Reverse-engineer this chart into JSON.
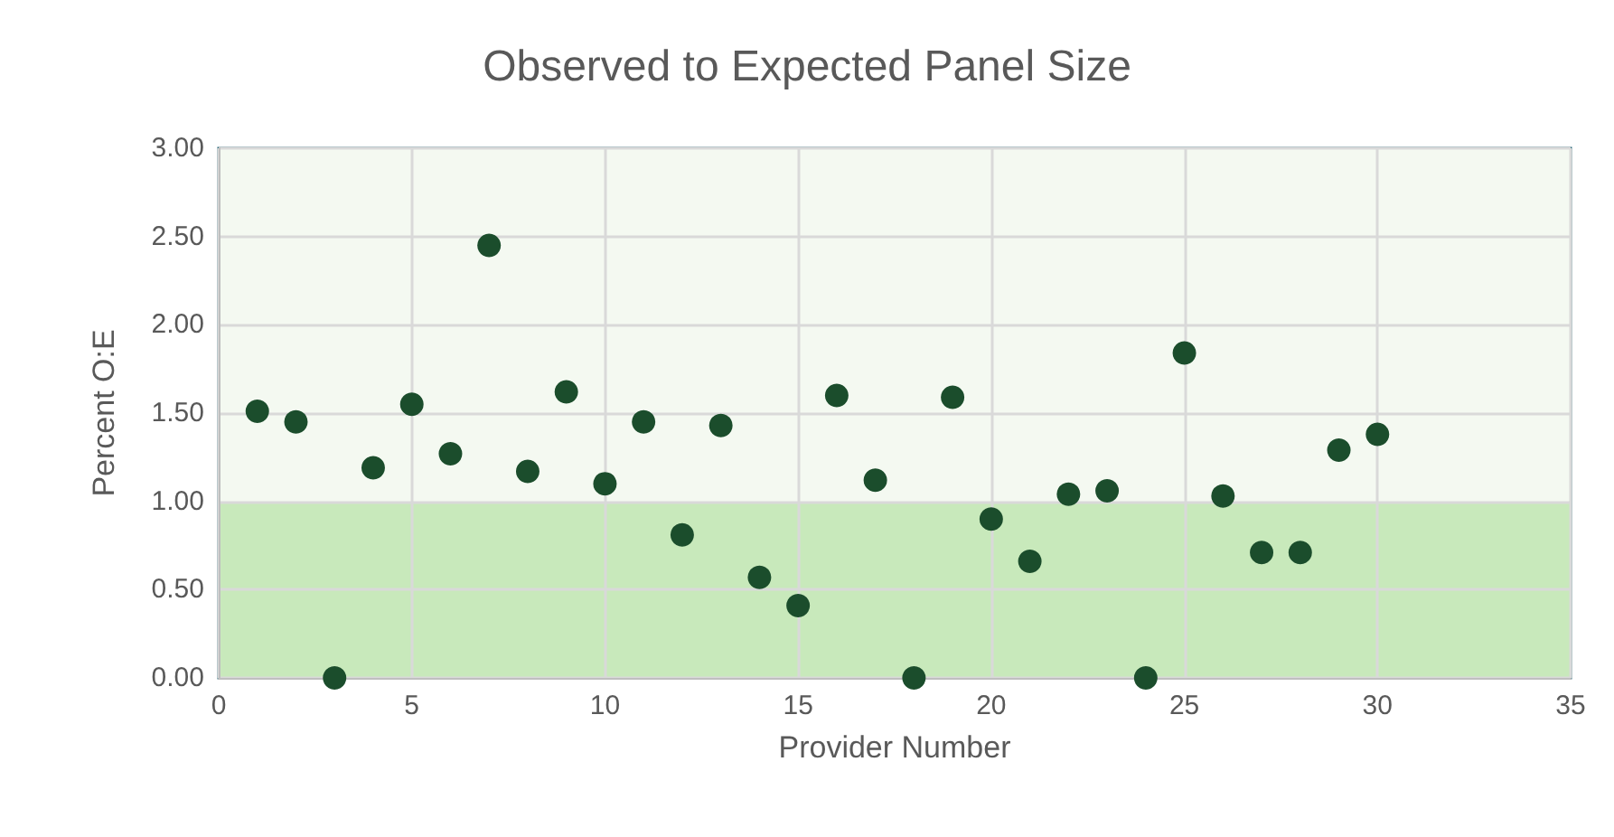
{
  "chart_data": {
    "type": "scatter",
    "title": "Observed to Expected Panel Size",
    "xlabel": "Provider Number",
    "ylabel": "Percent O:E",
    "x": [
      1,
      2,
      3,
      4,
      5,
      6,
      7,
      8,
      9,
      10,
      11,
      12,
      13,
      14,
      15,
      16,
      17,
      18,
      19,
      20,
      21,
      22,
      23,
      24,
      25,
      26,
      27,
      28,
      29,
      30
    ],
    "series": [
      {
        "color": "#1b4d2c",
        "values": [
          1.51,
          1.45,
          0,
          1.19,
          1.55,
          1.27,
          2.45,
          1.17,
          1.62,
          1.1,
          1.45,
          0.81,
          1.43,
          0.57,
          0.41,
          1.6,
          1.12,
          0,
          1.59,
          0.9,
          0.66,
          1.04,
          1.06,
          0,
          1.84,
          1.03,
          0.71,
          0.71,
          1.29,
          1.38
        ]
      }
    ],
    "xlim": [
      0,
      35
    ],
    "xticks": [
      0,
      5,
      10,
      15,
      20,
      25,
      30,
      35
    ],
    "ylim": [
      0,
      3
    ],
    "yticks": [
      {
        "value": 0,
        "label": "0.00"
      },
      {
        "value": 0.5,
        "label": "0.50"
      },
      {
        "value": 1,
        "label": "1.00"
      },
      {
        "value": 1.5,
        "label": "1.50"
      },
      {
        "value": 2,
        "label": "2.00"
      },
      {
        "value": 2.5,
        "label": "2.50"
      },
      {
        "value": 3,
        "label": "3.00"
      }
    ],
    "bands": [
      {
        "axis": "y",
        "from": 0,
        "to": 1,
        "color": "#c8e9bb"
      },
      {
        "axis": "y",
        "from": 1,
        "to": 3,
        "color": "#f4f9f1"
      }
    ],
    "grid": true,
    "marker": "circle"
  }
}
